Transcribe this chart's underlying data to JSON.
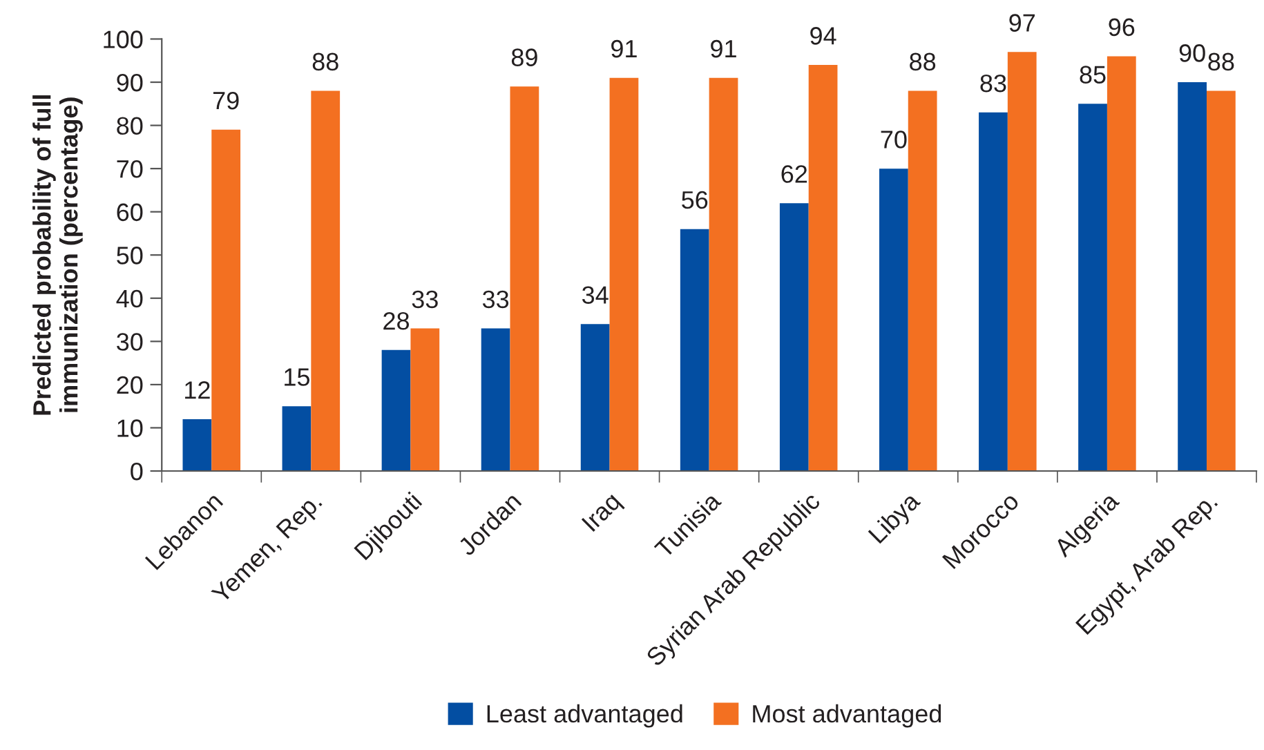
{
  "chart_data": {
    "type": "bar",
    "ylabel": "Predicted probability of full\nimmunization (percentage)",
    "categories": [
      "Lebanon",
      "Yemen, Rep.",
      "Djibouti",
      "Jordan",
      "Iraq",
      "Tunisia",
      "Syrian Arab Republic",
      "Libya",
      "Morocco",
      "Algeria",
      "Egypt, Arab Rep."
    ],
    "series": [
      {
        "name": "Least advantaged",
        "color": "#034ea2",
        "values": [
          12,
          15,
          28,
          33,
          34,
          56,
          62,
          70,
          83,
          85,
          90
        ]
      },
      {
        "name": "Most advantaged",
        "color": "#f37021",
        "values": [
          79,
          88,
          33,
          89,
          91,
          91,
          94,
          88,
          97,
          96,
          88
        ]
      }
    ],
    "ylim": [
      0,
      100
    ],
    "yticks": [
      0,
      10,
      20,
      30,
      40,
      50,
      60,
      70,
      80,
      90,
      100
    ],
    "data_labels": true,
    "grid": false,
    "legend": "bottom"
  }
}
